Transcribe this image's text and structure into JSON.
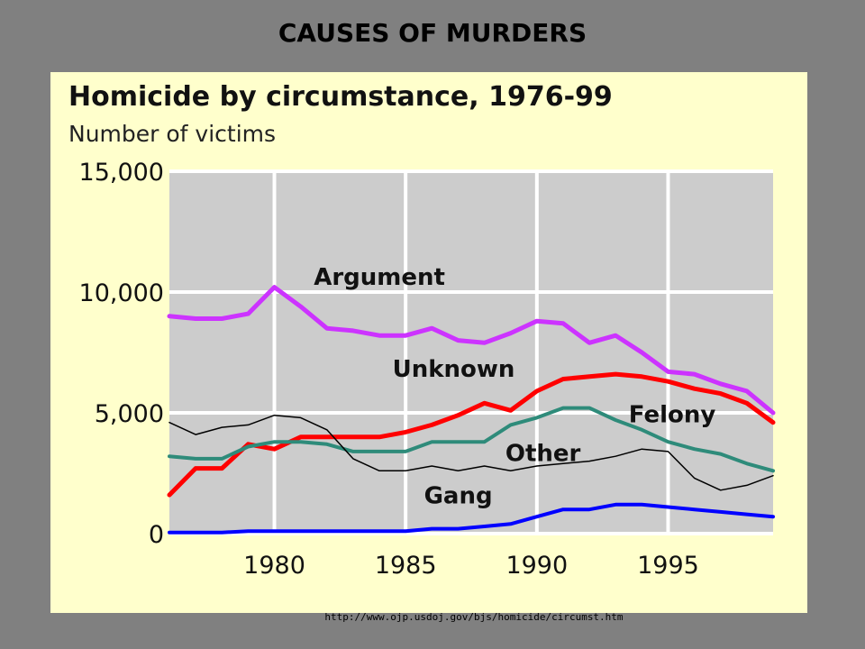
{
  "slide": {
    "title": "CAUSES OF MURDERS",
    "source_url": "http://www.ojp.usdoj.gov/bjs/homicide/circumst.htm"
  },
  "colors": {
    "slide_background": "#808080",
    "panel_background": "#ffffcc",
    "plot_background": "#cccccc",
    "gridline": "#ffffff"
  },
  "chart_data": {
    "type": "line",
    "title": "Homicide by circumstance, 1976-99",
    "subtitle": "Number of victims",
    "xlabel": "",
    "ylabel": "",
    "xlim": [
      1976,
      1999
    ],
    "ylim": [
      0,
      15000
    ],
    "x_ticks": [
      1980,
      1985,
      1990,
      1995
    ],
    "x_tick_labels": [
      "1980",
      "1985",
      "1990",
      "1995"
    ],
    "y_ticks": [
      0,
      5000,
      10000,
      15000
    ],
    "y_tick_labels": [
      "0",
      "5,000",
      "10,000",
      "15,000"
    ],
    "grid": true,
    "legend": "direct labels on lines",
    "x": [
      1976,
      1977,
      1978,
      1979,
      1980,
      1981,
      1982,
      1983,
      1984,
      1985,
      1986,
      1987,
      1988,
      1989,
      1990,
      1991,
      1992,
      1993,
      1994,
      1995,
      1996,
      1997,
      1998,
      1999
    ],
    "series": [
      {
        "name": "Argument",
        "color": "#cc33ff",
        "width": 5,
        "label_x": 1981.5,
        "label_y": 10300,
        "values": [
          9000,
          8900,
          8900,
          9100,
          10200,
          9400,
          8500,
          8400,
          8200,
          8200,
          8500,
          8000,
          7900,
          8300,
          8800,
          8700,
          7900,
          8200,
          7500,
          6700,
          6600,
          6200,
          5900,
          5000
        ]
      },
      {
        "name": "Unknown",
        "color": "#ff0000",
        "width": 5,
        "label_x": 1984.5,
        "label_y": 6500,
        "values": [
          1600,
          2700,
          2700,
          3700,
          3500,
          4000,
          4000,
          4000,
          4000,
          4200,
          4500,
          4900,
          5400,
          5100,
          5900,
          6400,
          6500,
          6600,
          6500,
          6300,
          6000,
          5800,
          5400,
          4600
        ]
      },
      {
        "name": "Felony",
        "color": "#2e8b7a",
        "width": 4,
        "label_x": 1993.5,
        "label_y": 4600,
        "values": [
          3200,
          3100,
          3100,
          3600,
          3800,
          3800,
          3700,
          3400,
          3400,
          3400,
          3800,
          3800,
          3800,
          4500,
          4800,
          5200,
          5200,
          4700,
          4300,
          3800,
          3500,
          3300,
          2900,
          2600
        ]
      },
      {
        "name": "Other",
        "color": "#000000",
        "width": 1.5,
        "label_x": 1988.8,
        "label_y": 3000,
        "values": [
          4600,
          4100,
          4400,
          4500,
          4900,
          4800,
          4300,
          3100,
          2600,
          2600,
          2800,
          2600,
          2800,
          2600,
          2800,
          2900,
          3000,
          3200,
          3500,
          3400,
          2300,
          1800,
          2000,
          2400
        ]
      },
      {
        "name": "Gang",
        "color": "#0000ff",
        "width": 4,
        "label_x": 1985.7,
        "label_y": 1250,
        "values": [
          50,
          50,
          50,
          100,
          100,
          100,
          100,
          100,
          100,
          100,
          200,
          200,
          300,
          400,
          700,
          1000,
          1000,
          1200,
          1200,
          1100,
          1000,
          900,
          800,
          700
        ]
      }
    ]
  }
}
